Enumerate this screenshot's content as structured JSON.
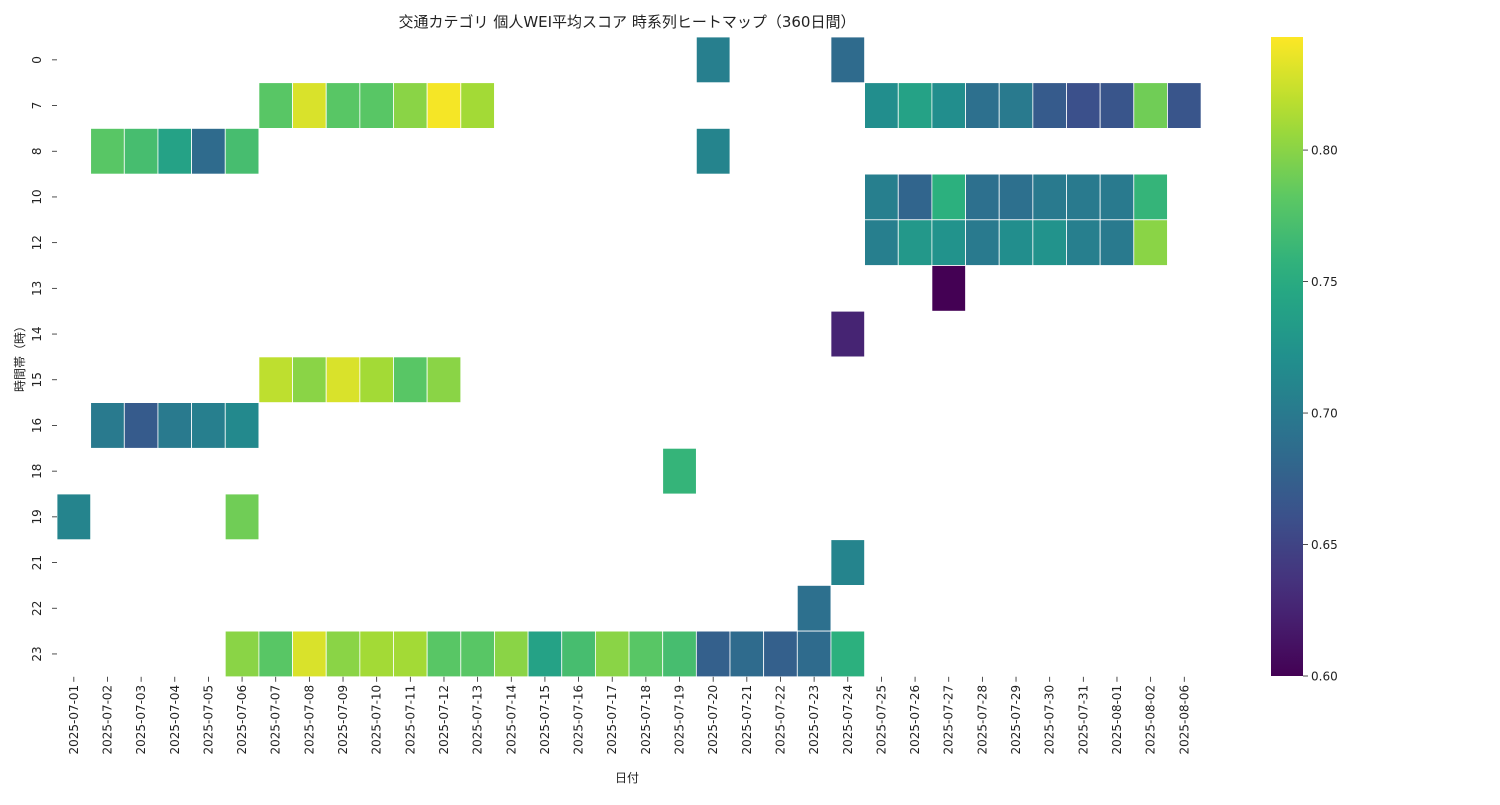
{
  "chart_data": {
    "type": "heatmap",
    "title": "交通カテゴリ 個人WEI平均スコア 時系列ヒートマップ（360日間）",
    "xlabel": "日付",
    "ylabel": "時間帯（時）",
    "x": [
      "2025-07-01",
      "2025-07-02",
      "2025-07-03",
      "2025-07-04",
      "2025-07-05",
      "2025-07-06",
      "2025-07-07",
      "2025-07-08",
      "2025-07-09",
      "2025-07-10",
      "2025-07-11",
      "2025-07-12",
      "2025-07-13",
      "2025-07-14",
      "2025-07-15",
      "2025-07-16",
      "2025-07-17",
      "2025-07-18",
      "2025-07-19",
      "2025-07-20",
      "2025-07-21",
      "2025-07-22",
      "2025-07-23",
      "2025-07-24",
      "2025-07-25",
      "2025-07-26",
      "2025-07-27",
      "2025-07-28",
      "2025-07-29",
      "2025-07-30",
      "2025-07-31",
      "2025-08-01",
      "2025-08-02",
      "2025-08-06"
    ],
    "y": [
      "0",
      "7",
      "8",
      "10",
      "12",
      "13",
      "14",
      "15",
      "16",
      "18",
      "19",
      "21",
      "22",
      "23"
    ],
    "values": [
      [
        null,
        null,
        null,
        null,
        null,
        null,
        null,
        null,
        null,
        null,
        null,
        null,
        null,
        null,
        null,
        null,
        null,
        null,
        null,
        0.705,
        null,
        null,
        null,
        0.685,
        null,
        null,
        null,
        null,
        null,
        null,
        null,
        null,
        null,
        null
      ],
      [
        null,
        null,
        null,
        null,
        null,
        null,
        0.78,
        0.83,
        0.78,
        0.78,
        0.8,
        0.84,
        0.81,
        null,
        null,
        null,
        null,
        null,
        null,
        null,
        null,
        null,
        null,
        null,
        0.72,
        0.74,
        0.72,
        0.69,
        0.7,
        0.67,
        0.66,
        0.665,
        0.79,
        0.665
      ],
      [
        null,
        0.78,
        0.77,
        0.74,
        0.685,
        0.77,
        null,
        null,
        null,
        null,
        null,
        null,
        null,
        null,
        null,
        null,
        null,
        null,
        null,
        0.71,
        null,
        null,
        null,
        null,
        null,
        null,
        null,
        null,
        null,
        null,
        null,
        null,
        null,
        null
      ],
      [
        null,
        null,
        null,
        null,
        null,
        null,
        null,
        null,
        null,
        null,
        null,
        null,
        null,
        null,
        null,
        null,
        null,
        null,
        null,
        null,
        null,
        null,
        null,
        null,
        0.705,
        0.68,
        0.755,
        0.69,
        0.69,
        0.7,
        0.7,
        0.7,
        0.76,
        null
      ],
      [
        null,
        null,
        null,
        null,
        null,
        null,
        null,
        null,
        null,
        null,
        null,
        null,
        null,
        null,
        null,
        null,
        null,
        null,
        null,
        null,
        null,
        null,
        null,
        null,
        0.705,
        0.73,
        0.725,
        0.7,
        0.72,
        0.725,
        0.705,
        0.7,
        0.8,
        null
      ],
      [
        null,
        null,
        null,
        null,
        null,
        null,
        null,
        null,
        null,
        null,
        null,
        null,
        null,
        null,
        null,
        null,
        null,
        null,
        null,
        null,
        null,
        null,
        null,
        null,
        null,
        null,
        0.6,
        null,
        null,
        null,
        null,
        null,
        null,
        null
      ],
      [
        null,
        null,
        null,
        null,
        null,
        null,
        null,
        null,
        null,
        null,
        null,
        null,
        null,
        null,
        null,
        null,
        null,
        null,
        null,
        null,
        null,
        null,
        null,
        0.625,
        null,
        null,
        null,
        null,
        null,
        null,
        null,
        null,
        null,
        null
      ],
      [
        null,
        null,
        null,
        null,
        null,
        null,
        0.82,
        0.8,
        0.83,
        0.81,
        0.78,
        0.8,
        null,
        null,
        null,
        null,
        null,
        null,
        null,
        null,
        null,
        null,
        null,
        null,
        null,
        null,
        null,
        null,
        null,
        null,
        null,
        null,
        null,
        null
      ],
      [
        null,
        0.7,
        0.67,
        0.7,
        0.705,
        0.715,
        null,
        null,
        null,
        null,
        null,
        null,
        null,
        null,
        null,
        null,
        null,
        null,
        null,
        null,
        null,
        null,
        null,
        null,
        null,
        null,
        null,
        null,
        null,
        null,
        null,
        null,
        null,
        null
      ],
      [
        null,
        null,
        null,
        null,
        null,
        null,
        null,
        null,
        null,
        null,
        null,
        null,
        null,
        null,
        null,
        null,
        null,
        null,
        0.76,
        null,
        null,
        null,
        null,
        null,
        null,
        null,
        null,
        null,
        null,
        null,
        null,
        null,
        null,
        null
      ],
      [
        0.71,
        null,
        null,
        null,
        null,
        0.79,
        null,
        null,
        null,
        null,
        null,
        null,
        null,
        null,
        null,
        null,
        null,
        null,
        null,
        null,
        null,
        null,
        null,
        null,
        null,
        null,
        null,
        null,
        null,
        null,
        null,
        null,
        null,
        null
      ],
      [
        null,
        null,
        null,
        null,
        null,
        null,
        null,
        null,
        null,
        null,
        null,
        null,
        null,
        null,
        null,
        null,
        null,
        null,
        null,
        null,
        null,
        null,
        null,
        0.71,
        null,
        null,
        null,
        null,
        null,
        null,
        null,
        null,
        null,
        null
      ],
      [
        null,
        null,
        null,
        null,
        null,
        null,
        null,
        null,
        null,
        null,
        null,
        null,
        null,
        null,
        null,
        null,
        null,
        null,
        null,
        null,
        null,
        null,
        0.69,
        null,
        null,
        null,
        null,
        null,
        null,
        null,
        null,
        null,
        null,
        null
      ],
      [
        null,
        null,
        null,
        null,
        null,
        0.8,
        0.78,
        0.83,
        0.8,
        0.81,
        0.81,
        0.78,
        0.78,
        0.8,
        0.74,
        0.77,
        0.8,
        0.78,
        0.77,
        0.675,
        0.685,
        0.675,
        0.685,
        0.755,
        null,
        null,
        null,
        null,
        null,
        null,
        null,
        null,
        null,
        null
      ]
    ],
    "vmin": 0.6,
    "vmax": 0.843,
    "colormap": "viridis",
    "colorbar_ticks": [
      "0.60",
      "0.65",
      "0.70",
      "0.75",
      "0.80"
    ],
    "grid": false,
    "colorbar_placement": "right"
  }
}
